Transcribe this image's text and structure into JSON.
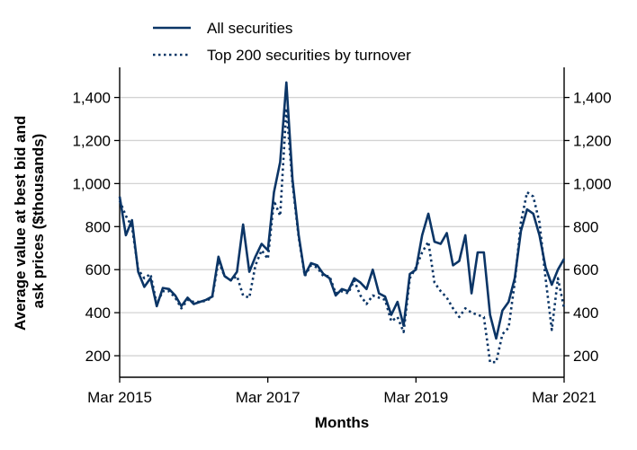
{
  "chart_data": {
    "type": "line",
    "title": "",
    "xlabel": "Months",
    "ylabel_line1": "Average value at best bid and",
    "ylabel_line2": "ask prices ($thousands)",
    "x_ticks": [
      "Mar 2015",
      "Mar 2017",
      "Mar 2019",
      "Mar 2021"
    ],
    "x_tick_positions": [
      0,
      24,
      48,
      72
    ],
    "x_range": [
      0,
      72
    ],
    "y_ticks": [
      200,
      400,
      600,
      800,
      1000,
      1200,
      1400
    ],
    "y_tick_labels": [
      "200",
      "400",
      "600",
      "800",
      "1,000",
      "1,200",
      "1,400"
    ],
    "ylim": [
      100,
      1540
    ],
    "grid": "horizontal",
    "legend_position": "top-left",
    "x_unit": "months since Mar 2015",
    "series": [
      {
        "name": "All securities",
        "style": "solid",
        "color": "#0b3566",
        "values": [
          940,
          760,
          830,
          590,
          520,
          560,
          430,
          515,
          510,
          480,
          430,
          470,
          440,
          450,
          460,
          475,
          660,
          570,
          550,
          590,
          810,
          590,
          660,
          720,
          690,
          960,
          1100,
          1470,
          1020,
          760,
          575,
          630,
          620,
          580,
          560,
          480,
          510,
          500,
          560,
          540,
          510,
          600,
          490,
          475,
          390,
          450,
          340,
          580,
          600,
          760,
          860,
          730,
          720,
          770,
          620,
          640,
          760,
          490,
          680,
          680,
          390,
          280,
          410,
          450,
          560,
          780,
          880,
          860,
          760,
          610,
          530,
          600,
          650
        ]
      },
      {
        "name": "Top 200 securities by turnover",
        "style": "dotted",
        "color": "#0b3566",
        "values": [
          920,
          850,
          800,
          600,
          560,
          580,
          440,
          500,
          500,
          470,
          420,
          460,
          450,
          450,
          455,
          470,
          640,
          570,
          550,
          570,
          480,
          470,
          620,
          690,
          650,
          920,
          850,
          1350,
          1000,
          750,
          570,
          620,
          610,
          570,
          570,
          490,
          500,
          490,
          550,
          480,
          440,
          480,
          470,
          460,
          360,
          380,
          310,
          560,
          610,
          680,
          730,
          540,
          500,
          470,
          420,
          380,
          420,
          400,
          390,
          380,
          170,
          170,
          300,
          330,
          540,
          820,
          960,
          940,
          820,
          560,
          320,
          560,
          420
        ]
      }
    ]
  }
}
